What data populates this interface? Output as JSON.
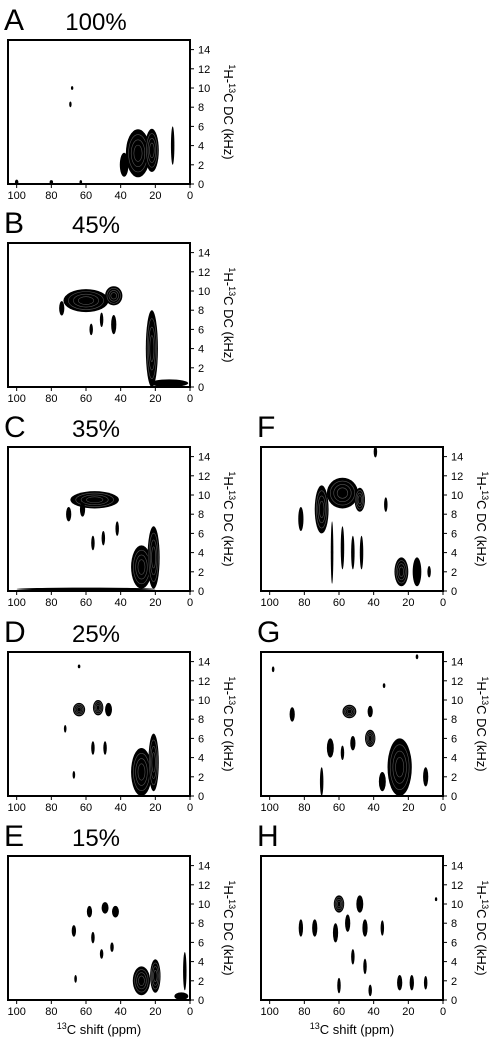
{
  "chart_data": [
    {
      "type": "heatmap",
      "panel": "A",
      "percent": "100%",
      "xlabel": "",
      "ylabel": "1H-13C DC (kHz)",
      "xlim": [
        105,
        0
      ],
      "ylim": [
        0,
        15
      ],
      "x_ticks": [
        100,
        80,
        60,
        40,
        20,
        0
      ],
      "y_ticks": [
        0,
        2,
        4,
        6,
        8,
        10,
        12,
        14
      ],
      "peaks": [
        {
          "x": 68,
          "y": 10.0,
          "w": 1.2,
          "h": 0.4
        },
        {
          "x": 69,
          "y": 8.3,
          "w": 1.0,
          "h": 0.6
        },
        {
          "x": 30,
          "y": 3.2,
          "w": 14,
          "h": 5.0
        },
        {
          "x": 22,
          "y": 3.5,
          "w": 8,
          "h": 4.5
        },
        {
          "x": 38,
          "y": 2.0,
          "w": 5,
          "h": 2.5
        },
        {
          "x": 10,
          "y": 4.0,
          "w": 2.0,
          "h": 4.0
        },
        {
          "x": 100,
          "y": 0.2,
          "w": 2,
          "h": 0.5
        },
        {
          "x": 80,
          "y": 0.2,
          "w": 2,
          "h": 0.4
        },
        {
          "x": 63,
          "y": 0.2,
          "w": 1.5,
          "h": 0.4
        }
      ]
    },
    {
      "type": "heatmap",
      "panel": "B",
      "percent": "45%",
      "xlabel": "",
      "ylabel": "1H-13C DC (kHz)",
      "xlim": [
        105,
        0
      ],
      "ylim": [
        0,
        15
      ],
      "x_ticks": [
        100,
        80,
        60,
        40,
        20,
        0
      ],
      "y_ticks": [
        0,
        2,
        4,
        6,
        8,
        10,
        12,
        14
      ],
      "peaks": [
        {
          "x": 60,
          "y": 9.0,
          "w": 26,
          "h": 2.4
        },
        {
          "x": 44,
          "y": 9.5,
          "w": 10,
          "h": 2.0
        },
        {
          "x": 74,
          "y": 8.2,
          "w": 3,
          "h": 1.5
        },
        {
          "x": 57,
          "y": 6.0,
          "w": 2,
          "h": 1.2
        },
        {
          "x": 51,
          "y": 7.0,
          "w": 2,
          "h": 1.5
        },
        {
          "x": 44,
          "y": 6.5,
          "w": 3,
          "h": 2.0
        },
        {
          "x": 22,
          "y": 4.0,
          "w": 7,
          "h": 8.0
        },
        {
          "x": 12,
          "y": 0.4,
          "w": 22,
          "h": 0.8
        }
      ]
    },
    {
      "type": "heatmap",
      "panel": "C",
      "percent": "35%",
      "xlabel": "",
      "ylabel": "1H-13C DC (kHz)",
      "xlim": [
        105,
        0
      ],
      "ylim": [
        0,
        15
      ],
      "x_ticks": [
        100,
        80,
        60,
        40,
        20,
        0
      ],
      "y_ticks": [
        0,
        2,
        4,
        6,
        8,
        10,
        12,
        14
      ],
      "peaks": [
        {
          "x": 55,
          "y": 9.5,
          "w": 28,
          "h": 1.8
        },
        {
          "x": 70,
          "y": 8.0,
          "w": 3,
          "h": 1.5
        },
        {
          "x": 62,
          "y": 8.5,
          "w": 3,
          "h": 1.5
        },
        {
          "x": 56,
          "y": 5.0,
          "w": 2,
          "h": 1.5
        },
        {
          "x": 50,
          "y": 5.5,
          "w": 2,
          "h": 1.5
        },
        {
          "x": 42,
          "y": 6.5,
          "w": 2,
          "h": 1.5
        },
        {
          "x": 28,
          "y": 2.5,
          "w": 12,
          "h": 4.5
        },
        {
          "x": 21,
          "y": 3.5,
          "w": 7,
          "h": 6.5
        },
        {
          "x": 60,
          "y": 0.2,
          "w": 80,
          "h": 0.3
        }
      ]
    },
    {
      "type": "heatmap",
      "panel": "D",
      "percent": "25%",
      "xlabel": "",
      "ylabel": "1H-13C DC (kHz)",
      "xlim": [
        105,
        0
      ],
      "ylim": [
        0,
        15
      ],
      "x_ticks": [
        100,
        80,
        60,
        40,
        20,
        0
      ],
      "y_ticks": [
        0,
        2,
        4,
        6,
        8,
        10,
        12,
        14
      ],
      "peaks": [
        {
          "x": 64,
          "y": 9.0,
          "w": 7,
          "h": 1.4
        },
        {
          "x": 53,
          "y": 9.2,
          "w": 6,
          "h": 1.6
        },
        {
          "x": 47,
          "y": 9.0,
          "w": 4,
          "h": 1.4
        },
        {
          "x": 56,
          "y": 5.0,
          "w": 2,
          "h": 1.4
        },
        {
          "x": 49,
          "y": 5.0,
          "w": 2,
          "h": 1.4
        },
        {
          "x": 72,
          "y": 7.0,
          "w": 1.5,
          "h": 0.8
        },
        {
          "x": 67,
          "y": 2.2,
          "w": 1.5,
          "h": 0.8
        },
        {
          "x": 28,
          "y": 2.5,
          "w": 12,
          "h": 5.0
        },
        {
          "x": 21,
          "y": 3.5,
          "w": 6,
          "h": 6.0
        },
        {
          "x": 64,
          "y": 13.5,
          "w": 1.5,
          "h": 0.4
        }
      ]
    },
    {
      "type": "heatmap",
      "panel": "E",
      "percent": "15%",
      "xlabel": "13C shift (ppm)",
      "ylabel": "1H-13C DC (kHz)",
      "xlim": [
        105,
        0
      ],
      "ylim": [
        0,
        15
      ],
      "x_ticks": [
        100,
        80,
        60,
        40,
        20,
        0
      ],
      "y_ticks": [
        0,
        2,
        4,
        6,
        8,
        10,
        12,
        14
      ],
      "peaks": [
        {
          "x": 58,
          "y": 9.2,
          "w": 3,
          "h": 1.2
        },
        {
          "x": 49,
          "y": 9.6,
          "w": 4,
          "h": 1.2
        },
        {
          "x": 43,
          "y": 9.2,
          "w": 4,
          "h": 1.2
        },
        {
          "x": 67,
          "y": 7.2,
          "w": 2.5,
          "h": 1.2
        },
        {
          "x": 56,
          "y": 6.5,
          "w": 2,
          "h": 1.2
        },
        {
          "x": 45,
          "y": 5.5,
          "w": 2,
          "h": 1.0
        },
        {
          "x": 51,
          "y": 4.8,
          "w": 2,
          "h": 1.0
        },
        {
          "x": 66,
          "y": 2.2,
          "w": 1.5,
          "h": 0.8
        },
        {
          "x": 28,
          "y": 2.0,
          "w": 10,
          "h": 3.0
        },
        {
          "x": 20,
          "y": 2.5,
          "w": 6,
          "h": 3.5
        },
        {
          "x": 3,
          "y": 3.0,
          "w": 2,
          "h": 4.0
        },
        {
          "x": 5,
          "y": 0.4,
          "w": 8,
          "h": 0.8
        }
      ]
    },
    {
      "type": "heatmap",
      "panel": "F",
      "percent": "",
      "xlabel": "",
      "ylabel": "1H-13C DC (kHz)",
      "xlim": [
        105,
        0
      ],
      "ylim": [
        0,
        15
      ],
      "x_ticks": [
        100,
        80,
        60,
        40,
        20,
        0
      ],
      "y_ticks": [
        0,
        2,
        4,
        6,
        8,
        10,
        12,
        14
      ],
      "peaks": [
        {
          "x": 58,
          "y": 10.2,
          "w": 18,
          "h": 3.2
        },
        {
          "x": 70,
          "y": 8.5,
          "w": 8,
          "h": 5.0
        },
        {
          "x": 48,
          "y": 9.5,
          "w": 6,
          "h": 2.5
        },
        {
          "x": 82,
          "y": 7.5,
          "w": 3,
          "h": 2.5
        },
        {
          "x": 64,
          "y": 4.0,
          "w": 1.5,
          "h": 6.5
        },
        {
          "x": 58,
          "y": 4.5,
          "w": 2,
          "h": 4.5
        },
        {
          "x": 52,
          "y": 4.0,
          "w": 2,
          "h": 3.5
        },
        {
          "x": 47,
          "y": 4.0,
          "w": 2,
          "h": 3.5
        },
        {
          "x": 39,
          "y": 14.5,
          "w": 2,
          "h": 1.2
        },
        {
          "x": 33,
          "y": 9.0,
          "w": 2,
          "h": 1.5
        },
        {
          "x": 24,
          "y": 2.0,
          "w": 8,
          "h": 3.0
        },
        {
          "x": 15,
          "y": 2.0,
          "w": 5,
          "h": 3.0
        },
        {
          "x": 8,
          "y": 2.0,
          "w": 2,
          "h": 1.2
        }
      ]
    },
    {
      "type": "heatmap",
      "panel": "G",
      "percent": "",
      "xlabel": "",
      "ylabel": "1H-13C DC (kHz)",
      "xlim": [
        105,
        0
      ],
      "ylim": [
        0,
        15
      ],
      "x_ticks": [
        100,
        80,
        60,
        40,
        20,
        0
      ],
      "y_ticks": [
        0,
        2,
        4,
        6,
        8,
        10,
        12,
        14
      ],
      "peaks": [
        {
          "x": 87,
          "y": 8.5,
          "w": 3,
          "h": 1.5
        },
        {
          "x": 54,
          "y": 8.8,
          "w": 8,
          "h": 1.4
        },
        {
          "x": 42,
          "y": 8.8,
          "w": 3,
          "h": 1.2
        },
        {
          "x": 42,
          "y": 6.0,
          "w": 6,
          "h": 1.8
        },
        {
          "x": 52,
          "y": 5.5,
          "w": 3,
          "h": 1.5
        },
        {
          "x": 65,
          "y": 5.0,
          "w": 4,
          "h": 2.0
        },
        {
          "x": 58,
          "y": 4.5,
          "w": 2,
          "h": 1.5
        },
        {
          "x": 70,
          "y": 1.5,
          "w": 2,
          "h": 3.0
        },
        {
          "x": 25,
          "y": 3.0,
          "w": 14,
          "h": 6.0
        },
        {
          "x": 10,
          "y": 2.0,
          "w": 3,
          "h": 2.0
        },
        {
          "x": 35,
          "y": 1.5,
          "w": 4,
          "h": 2.0
        },
        {
          "x": 98,
          "y": 13.2,
          "w": 1.5,
          "h": 0.6
        },
        {
          "x": 15,
          "y": 14.5,
          "w": 1.5,
          "h": 0.5
        },
        {
          "x": 34,
          "y": 11.5,
          "w": 1.5,
          "h": 0.5
        }
      ]
    },
    {
      "type": "heatmap",
      "panel": "H",
      "percent": "",
      "xlabel": "13C shift (ppm)",
      "ylabel": "1H-13C DC (kHz)",
      "xlim": [
        105,
        0
      ],
      "ylim": [
        0,
        15
      ],
      "x_ticks": [
        100,
        80,
        60,
        40,
        20,
        0
      ],
      "y_ticks": [
        0,
        2,
        4,
        6,
        8,
        10,
        12,
        14
      ],
      "peaks": [
        {
          "x": 60,
          "y": 10.0,
          "w": 6,
          "h": 1.8
        },
        {
          "x": 48,
          "y": 10.0,
          "w": 4,
          "h": 1.8
        },
        {
          "x": 82,
          "y": 7.5,
          "w": 2.5,
          "h": 1.8
        },
        {
          "x": 74,
          "y": 7.5,
          "w": 3,
          "h": 1.8
        },
        {
          "x": 62,
          "y": 7.0,
          "w": 3,
          "h": 2.0
        },
        {
          "x": 55,
          "y": 8.0,
          "w": 3,
          "h": 1.8
        },
        {
          "x": 45,
          "y": 7.5,
          "w": 3,
          "h": 1.8
        },
        {
          "x": 35,
          "y": 7.5,
          "w": 2,
          "h": 1.6
        },
        {
          "x": 52,
          "y": 4.5,
          "w": 2,
          "h": 1.6
        },
        {
          "x": 45,
          "y": 3.5,
          "w": 2,
          "h": 1.6
        },
        {
          "x": 60,
          "y": 1.5,
          "w": 2,
          "h": 1.6
        },
        {
          "x": 42,
          "y": 1.0,
          "w": 2,
          "h": 1.2
        },
        {
          "x": 25,
          "y": 1.8,
          "w": 3,
          "h": 1.6
        },
        {
          "x": 18,
          "y": 1.8,
          "w": 2.5,
          "h": 1.6
        },
        {
          "x": 10,
          "y": 1.8,
          "w": 2,
          "h": 1.4
        },
        {
          "x": 4,
          "y": 10.5,
          "w": 1.2,
          "h": 0.4
        }
      ]
    }
  ]
}
